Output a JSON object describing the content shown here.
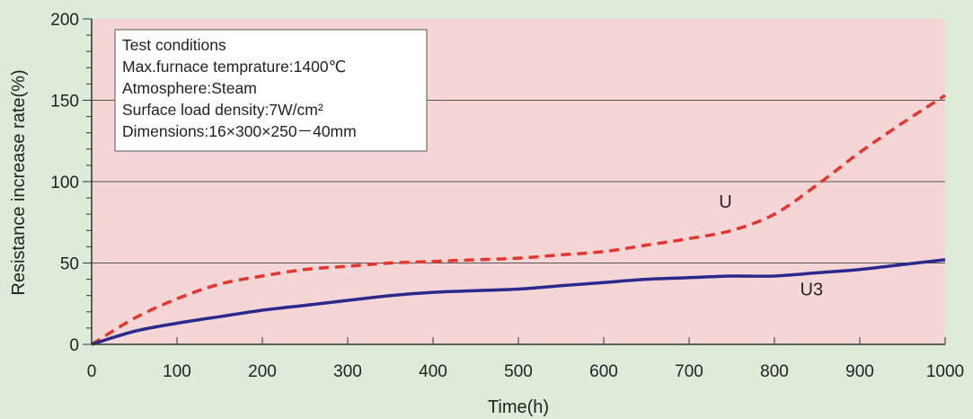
{
  "chart_data": {
    "type": "line",
    "xlabel": "Time(h)",
    "ylabel": "Resistance increase rate(%)",
    "xlim": [
      0,
      1000
    ],
    "ylim": [
      0,
      200
    ],
    "x_ticks": [
      0,
      100,
      200,
      300,
      400,
      500,
      600,
      700,
      800,
      900,
      1000
    ],
    "y_ticks": [
      0,
      50,
      100,
      150,
      200
    ],
    "grid_y": [
      50,
      100,
      150
    ],
    "colors": {
      "page_background": "#dcecd9",
      "plot_background": "#f5d6d6",
      "grid": "#555555",
      "U": "#e8342c",
      "U3": "#2a2a8c"
    },
    "series": [
      {
        "name": "U",
        "style": "dashed",
        "x": [
          0,
          50,
          100,
          150,
          200,
          250,
          300,
          350,
          400,
          450,
          500,
          550,
          600,
          650,
          700,
          750,
          800,
          850,
          900,
          950,
          1000
        ],
        "y": [
          0,
          16,
          28,
          37,
          42,
          46,
          48,
          50,
          51,
          52,
          53,
          55,
          57,
          61,
          65,
          70,
          80,
          98,
          118,
          136,
          153
        ]
      },
      {
        "name": "U3",
        "style": "solid",
        "x": [
          0,
          50,
          100,
          150,
          200,
          250,
          300,
          350,
          400,
          450,
          500,
          550,
          600,
          650,
          700,
          750,
          800,
          850,
          900,
          950,
          1000
        ],
        "y": [
          0,
          8,
          13,
          17,
          21,
          24,
          27,
          30,
          32,
          33,
          34,
          36,
          38,
          40,
          41,
          42,
          42,
          44,
          46,
          49,
          52
        ]
      }
    ],
    "series_label_positions_data": [
      {
        "name": "U",
        "x": 735,
        "y": 84
      },
      {
        "name": "U3",
        "x": 830,
        "y": 30
      }
    ],
    "annotation": {
      "lines": [
        "Test conditions",
        "Max.furnace temprature:1400℃",
        "Atmosphere:Steam",
        "Surface load density:7W/cm²",
        "Dimensions:16×300×250－40mm"
      ]
    }
  }
}
